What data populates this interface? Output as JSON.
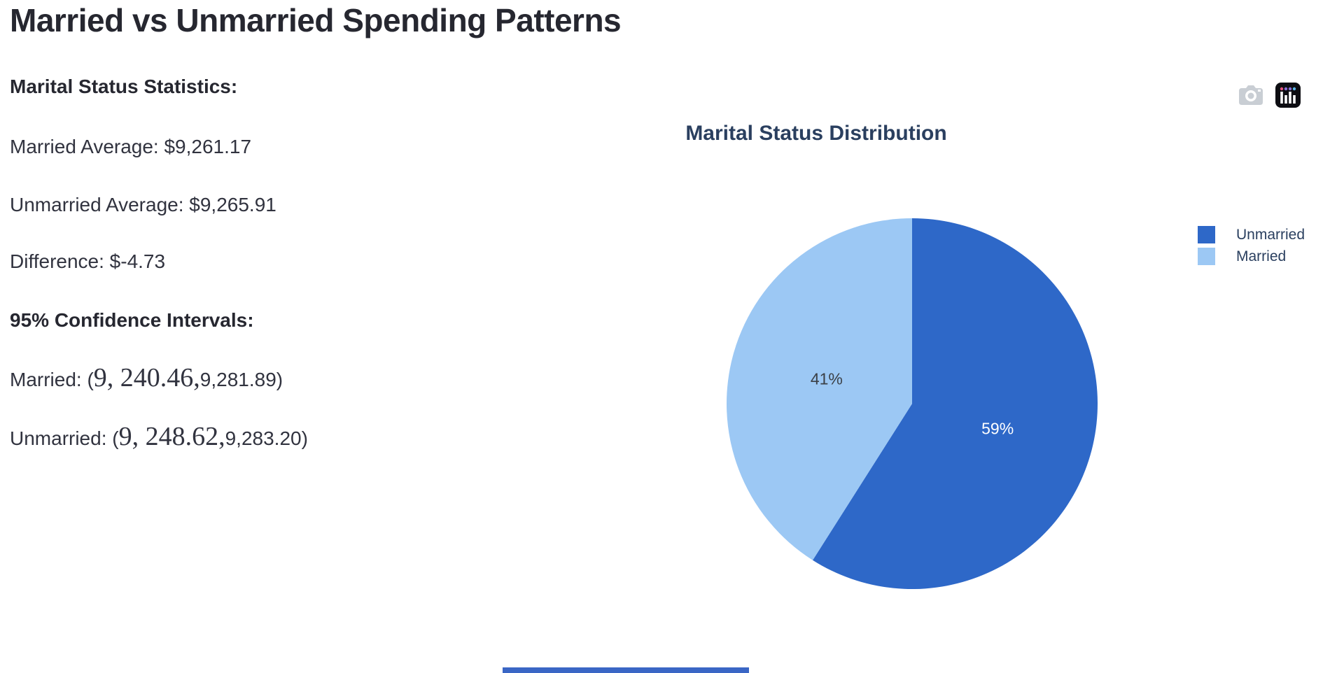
{
  "page": {
    "title": "Married vs Unmarried Spending Patterns"
  },
  "stats": {
    "heading": "Marital Status Statistics:",
    "lines": [
      {
        "text": "Married Average: $9,261.17"
      },
      {
        "text": "Unmarried Average: $9,265.91"
      },
      {
        "text": "Difference: $-4.73"
      }
    ],
    "ci_heading": "95% Confidence Intervals:",
    "ci_lines": [
      {
        "prefix": "Married: (",
        "math": "9, 240.46,",
        "suffix": "9,281.89)"
      },
      {
        "prefix": "Unmarried: (",
        "math": "9, 248.62,",
        "suffix": "9,283.20)"
      }
    ]
  },
  "modebar": {
    "icons": [
      {
        "name": "camera-icon",
        "meaning": "download plot as png",
        "color": "#c9ced4"
      },
      {
        "name": "plotly-logo-icon",
        "meaning": "produced with plotly",
        "color": "#0d0d12"
      }
    ]
  },
  "chart_data": {
    "type": "pie",
    "title": "Marital Status Distribution",
    "labels": [
      "Unmarried",
      "Married"
    ],
    "values": [
      59,
      41
    ],
    "value_labels": [
      "59%",
      "41%"
    ],
    "colors": [
      "#2E68C8",
      "#9CC8F4"
    ],
    "label_text_colors": [
      "#ffffff",
      "#3b4046"
    ],
    "start_angle": 90,
    "direction": "clockwise",
    "legend_position": "right",
    "title_color": "#2a3f5f"
  }
}
